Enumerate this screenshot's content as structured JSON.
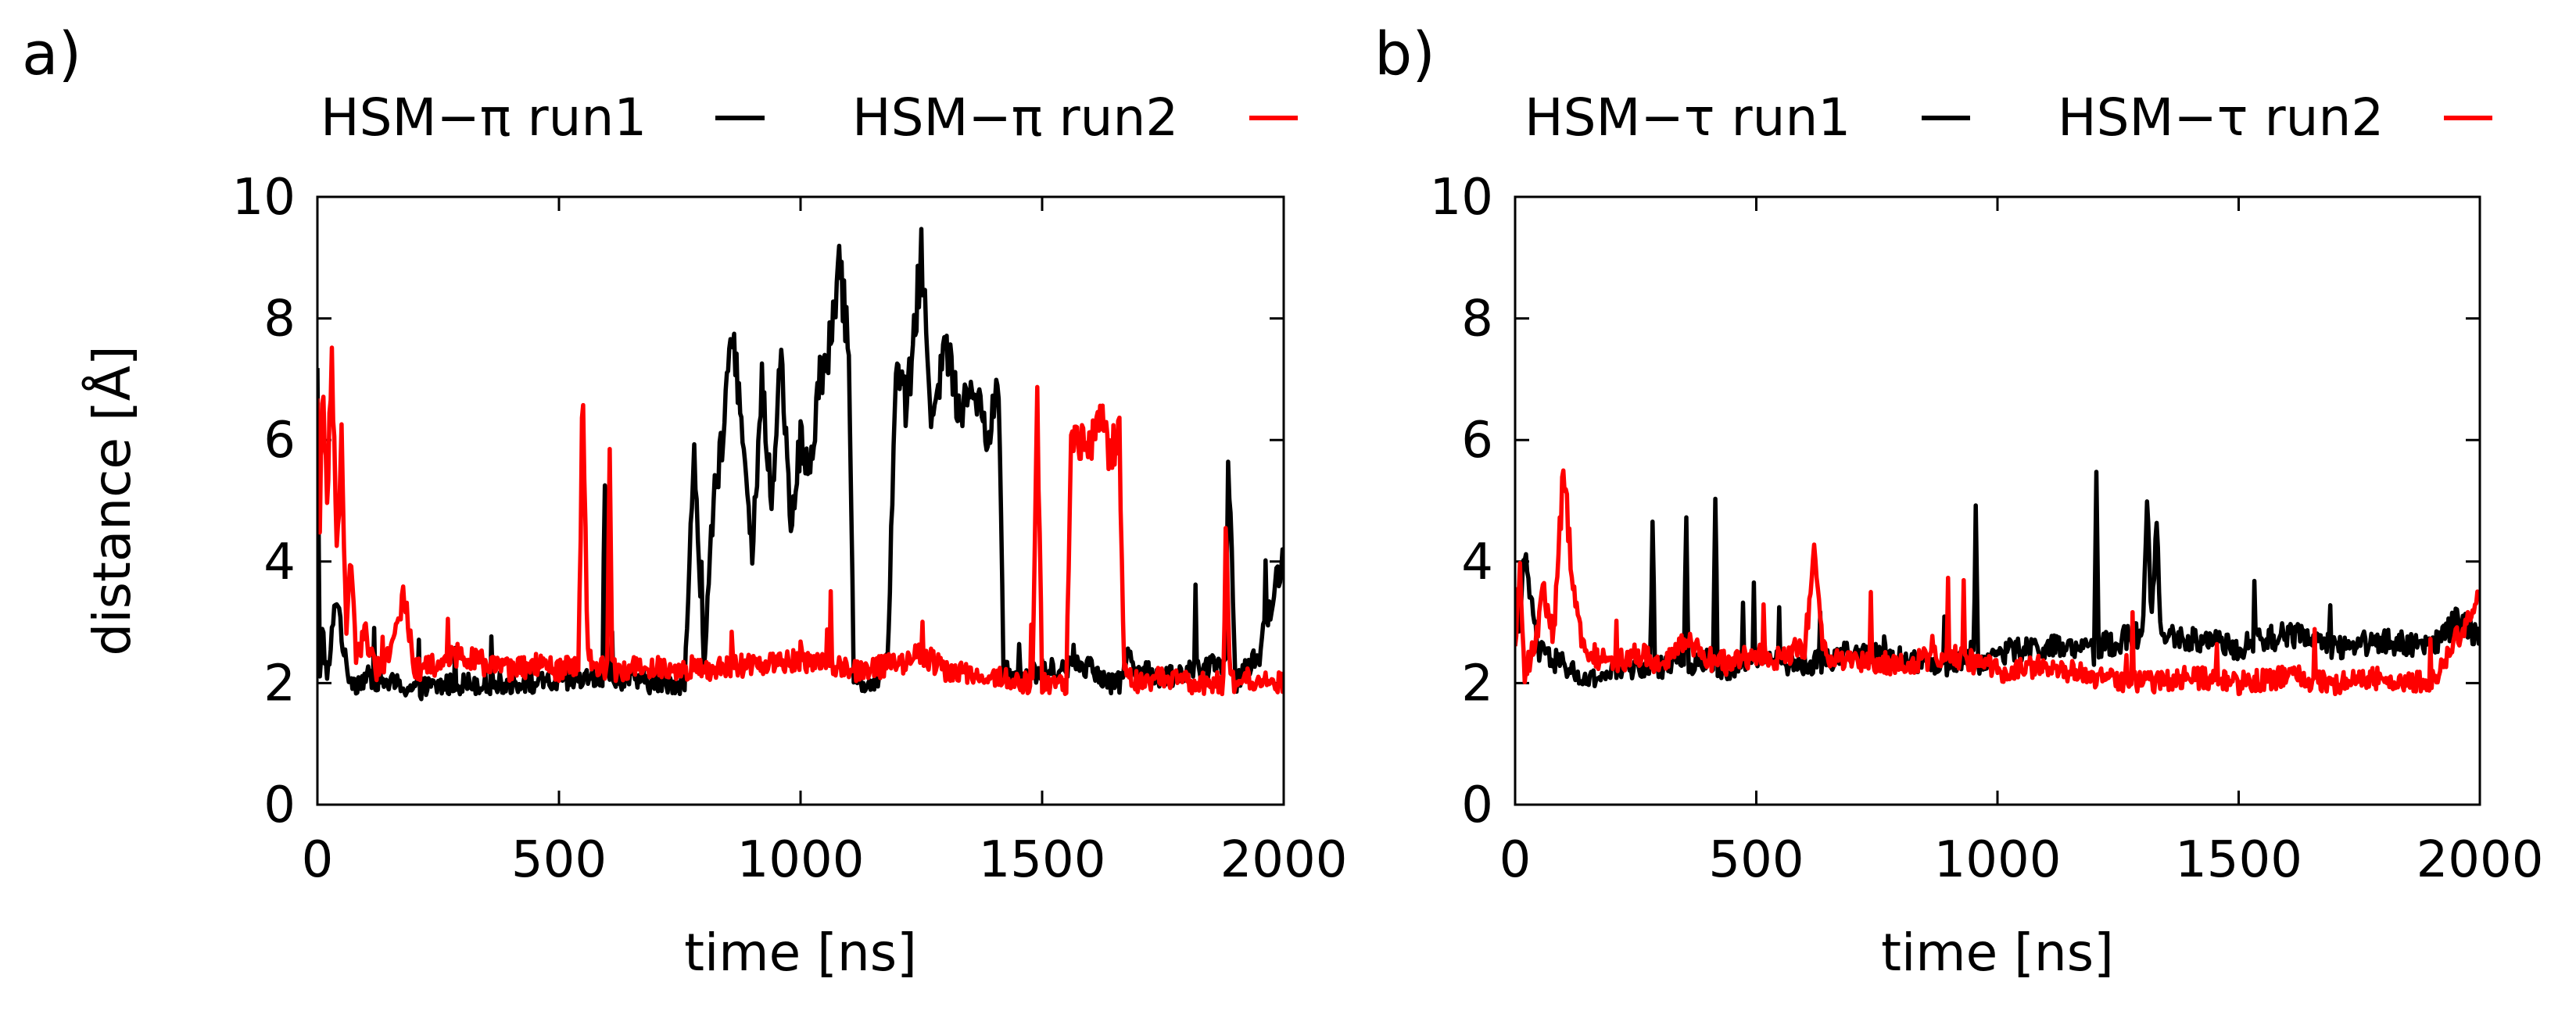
{
  "chart_data": [
    {
      "type": "line",
      "panel_label": "a)",
      "xlabel": "time [ns]",
      "ylabel": "distance [Å]",
      "xlim": [
        0,
        2000
      ],
      "ylim": [
        0,
        10
      ],
      "xticks": [
        0,
        500,
        1000,
        1500,
        2000
      ],
      "yticks": [
        0,
        2,
        4,
        6,
        8,
        10
      ],
      "legend_placement": "top, horizontal",
      "series": [
        {
          "name": "HSM−π  run1",
          "color": "#000000",
          "x": [
            0,
            5,
            10,
            20,
            40,
            60,
            80,
            100,
            150,
            200,
            300,
            400,
            500,
            590,
            595,
            600,
            700,
            760,
            780,
            800,
            820,
            840,
            860,
            880,
            900,
            920,
            940,
            960,
            980,
            1000,
            1020,
            1040,
            1060,
            1080,
            1100,
            1110,
            1130,
            1160,
            1180,
            1200,
            1220,
            1250,
            1270,
            1300,
            1330,
            1360,
            1390,
            1410,
            1420,
            1440,
            1500,
            1600,
            1640,
            1660,
            1680,
            1700,
            1750,
            1800,
            1880,
            1885,
            1900,
            1950,
            1980,
            2000
          ],
          "values": [
            7.0,
            2.0,
            3.0,
            2.0,
            3.5,
            2.2,
            2.0,
            2.1,
            2.0,
            1.9,
            2.0,
            2.0,
            2.0,
            2.1,
            5.5,
            2.1,
            2.0,
            2.0,
            5.8,
            2.3,
            5.0,
            6.0,
            8.0,
            6.0,
            4.0,
            7.0,
            5.0,
            7.5,
            4.5,
            6.0,
            5.5,
            7.0,
            7.5,
            8.8,
            7.5,
            2.2,
            2.0,
            2.1,
            2.5,
            7.5,
            6.5,
            9.0,
            6.5,
            7.5,
            6.5,
            7.0,
            6.0,
            7.0,
            2.3,
            2.1,
            2.2,
            2.3,
            2.0,
            2.0,
            2.5,
            2.2,
            2.1,
            2.2,
            2.3,
            6.0,
            2.0,
            2.5,
            3.5,
            4.2
          ]
        },
        {
          "name": "HSM−π  run2",
          "color": "#ff0000",
          "x": [
            0,
            5,
            10,
            20,
            30,
            40,
            50,
            60,
            70,
            80,
            100,
            120,
            150,
            180,
            200,
            250,
            300,
            350,
            400,
            450,
            500,
            540,
            550,
            560,
            600,
            605,
            610,
            700,
            800,
            900,
            1000,
            1100,
            1200,
            1250,
            1300,
            1400,
            1480,
            1490,
            1500,
            1550,
            1560,
            1580,
            1600,
            1620,
            1640,
            1660,
            1670,
            1680,
            1700,
            1750,
            1800,
            1875,
            1880,
            1890,
            1950,
            2000
          ],
          "values": [
            6.5,
            4.5,
            7.0,
            5.0,
            7.5,
            4.0,
            6.0,
            3.0,
            4.0,
            2.5,
            2.8,
            2.2,
            2.5,
            3.5,
            2.2,
            2.3,
            2.5,
            2.3,
            2.2,
            2.3,
            2.2,
            2.3,
            6.2,
            2.4,
            2.2,
            6.0,
            2.2,
            2.3,
            2.2,
            2.3,
            2.4,
            2.2,
            2.3,
            2.5,
            2.2,
            2.1,
            2.0,
            6.5,
            2.0,
            2.0,
            5.8,
            6.0,
            5.8,
            6.5,
            5.8,
            6.0,
            2.2,
            2.1,
            2.0,
            2.1,
            2.0,
            2.0,
            4.5,
            2.0,
            2.1,
            2.0
          ]
        }
      ]
    },
    {
      "type": "line",
      "panel_label": "b)",
      "xlabel": "time [ns]",
      "ylabel": "",
      "xlim": [
        0,
        2000
      ],
      "ylim": [
        0,
        10
      ],
      "xticks": [
        0,
        500,
        1000,
        1500,
        2000
      ],
      "yticks": [
        0,
        2,
        4,
        6,
        8,
        10
      ],
      "legend_placement": "top, horizontal",
      "series": [
        {
          "name": "HSM−τ  run1",
          "color": "#000000",
          "x": [
            0,
            20,
            50,
            100,
            150,
            200,
            280,
            285,
            290,
            350,
            355,
            360,
            410,
            415,
            420,
            500,
            600,
            700,
            800,
            900,
            950,
            955,
            960,
            1000,
            1100,
            1200,
            1205,
            1210,
            1250,
            1300,
            1310,
            1320,
            1330,
            1340,
            1400,
            1500,
            1600,
            1700,
            1800,
            1900,
            1950,
            2000
          ],
          "values": [
            2.5,
            4.0,
            2.5,
            2.3,
            2.0,
            2.2,
            2.3,
            4.8,
            2.2,
            2.5,
            4.5,
            2.3,
            2.4,
            5.3,
            2.2,
            2.4,
            2.3,
            2.5,
            2.4,
            2.3,
            2.5,
            4.8,
            2.3,
            2.5,
            2.6,
            2.5,
            5.7,
            2.6,
            2.7,
            2.8,
            4.8,
            3.0,
            4.5,
            2.8,
            2.7,
            2.6,
            2.8,
            2.6,
            2.7,
            2.6,
            3.0,
            2.8
          ]
        },
        {
          "name": "HSM−τ  run2",
          "color": "#ff0000",
          "x": [
            0,
            10,
            20,
            40,
            60,
            80,
            95,
            100,
            110,
            130,
            150,
            200,
            250,
            300,
            350,
            400,
            450,
            500,
            550,
            600,
            620,
            640,
            700,
            800,
            900,
            1000,
            1100,
            1200,
            1300,
            1400,
            1500,
            1600,
            1700,
            1800,
            1900,
            2000
          ],
          "values": [
            2.5,
            3.8,
            2.2,
            2.6,
            3.5,
            2.8,
            4.8,
            5.8,
            4.5,
            3.0,
            2.5,
            2.3,
            2.5,
            2.3,
            2.7,
            2.4,
            2.3,
            2.5,
            2.4,
            2.6,
            4.0,
            2.5,
            2.4,
            2.3,
            2.5,
            2.2,
            2.3,
            2.1,
            2.0,
            2.1,
            2.0,
            2.1,
            2.0,
            2.1,
            2.0,
            3.4
          ]
        }
      ]
    }
  ]
}
